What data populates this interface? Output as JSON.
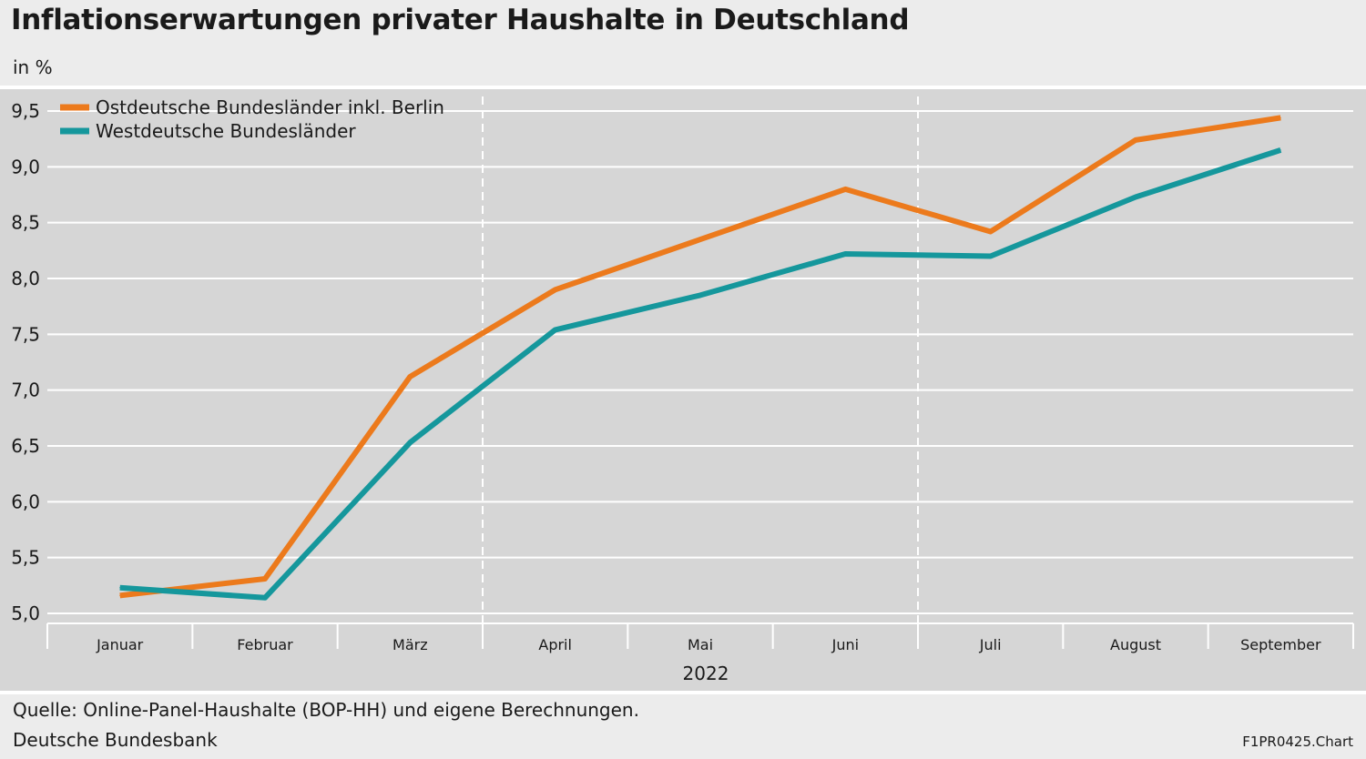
{
  "header": {
    "title": "Inflationserwartungen privater Haushalte in Deutschland",
    "unit": "in %"
  },
  "footer": {
    "source": "Quelle: Online-Panel-Haushalte (BOP-HH) und eigene Berechnungen.",
    "publisher": "Deutsche Bundesbank",
    "chart_id": "F1PR0425.Chart"
  },
  "colors": {
    "ost": "#ec7a1c",
    "west": "#15979c",
    "background": "#d6d6d6",
    "grid": "#ffffff"
  },
  "chart_data": {
    "type": "line",
    "title": "Inflationserwartungen privater Haushalte in Deutschland",
    "ylabel": "in %",
    "xlabel": "2022",
    "categories": [
      "Januar",
      "Februar",
      "März",
      "April",
      "Mai",
      "Juni",
      "Juli",
      "August",
      "September"
    ],
    "ylim": [
      5.0,
      9.5
    ],
    "yticks": [
      "5,0",
      "5,5",
      "6,0",
      "6,5",
      "7,0",
      "7,5",
      "8,0",
      "8,5",
      "9,0",
      "9,5"
    ],
    "grid": true,
    "quarter_dividers_after": [
      "März",
      "Juni"
    ],
    "legend_position": "top-left",
    "series": [
      {
        "name": "Ostdeutsche Bundesländer inkl. Berlin",
        "color": "#ec7a1c",
        "values": [
          5.16,
          5.31,
          7.12,
          7.9,
          8.35,
          8.8,
          8.42,
          9.24,
          9.44
        ]
      },
      {
        "name": "Westdeutsche Bundesländer",
        "color": "#15979c",
        "values": [
          5.23,
          5.14,
          6.53,
          7.54,
          7.85,
          8.22,
          8.2,
          8.73,
          9.15
        ]
      }
    ]
  }
}
